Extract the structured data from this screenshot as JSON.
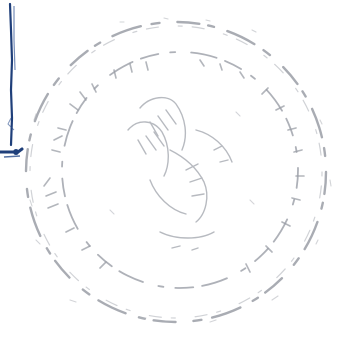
{
  "image": {
    "description_kind": "faded scanned official stamp",
    "colors": {
      "background": "#ffffff",
      "stamp_ink": "#9a9ea6",
      "stamp_ink_light": "#c4c7cc",
      "pen_mark": "#1f3f7a"
    }
  },
  "stamp": {
    "shape": "circular seal with inner emblem",
    "legible_text": ""
  }
}
